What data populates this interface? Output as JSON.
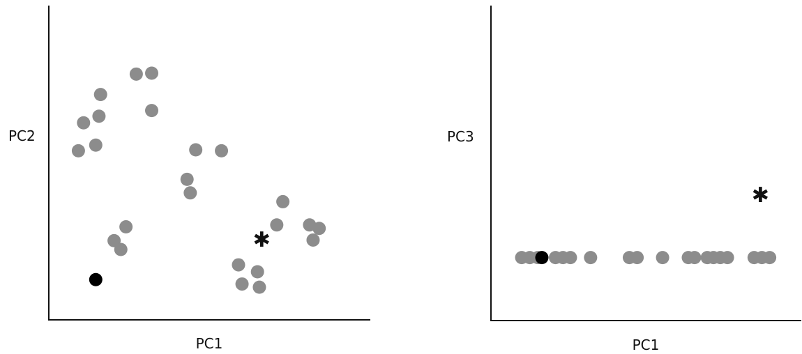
{
  "chart_data": [
    {
      "type": "scatter",
      "title": "",
      "xlabel": "PC1",
      "ylabel": "PC2",
      "grid": false,
      "ticks": false,
      "colors": {
        "points": "#8c8c8c",
        "highlight": "#000000",
        "star": "#111111",
        "axis": "#111111"
      },
      "series": [
        {
          "marker": "circle",
          "color": "#8c8c8c",
          "points": [
            [
              0.092,
              0.538
            ],
            [
              0.146,
              0.556
            ],
            [
              0.108,
              0.627
            ],
            [
              0.156,
              0.648
            ],
            [
              0.161,
              0.717
            ],
            [
              0.272,
              0.782
            ],
            [
              0.32,
              0.785
            ],
            [
              0.32,
              0.666
            ],
            [
              0.457,
              0.541
            ],
            [
              0.537,
              0.538
            ],
            [
              0.43,
              0.447
            ],
            [
              0.44,
              0.404
            ],
            [
              0.24,
              0.296
            ],
            [
              0.203,
              0.252
            ],
            [
              0.224,
              0.224
            ],
            [
              0.728,
              0.376
            ],
            [
              0.709,
              0.302
            ],
            [
              0.811,
              0.302
            ],
            [
              0.841,
              0.291
            ],
            [
              0.822,
              0.254
            ],
            [
              0.59,
              0.175
            ],
            [
              0.649,
              0.153
            ],
            [
              0.601,
              0.114
            ],
            [
              0.655,
              0.104
            ]
          ]
        },
        {
          "marker": "circle",
          "color": "#000000",
          "points": [
            [
              0.146,
              0.128
            ]
          ]
        },
        {
          "marker": "asterisk",
          "color": "#111111",
          "points": [
            [
              0.662,
              0.257
            ]
          ]
        }
      ]
    },
    {
      "type": "scatter",
      "title": "",
      "xlabel": "PC1",
      "ylabel": "PC3",
      "grid": false,
      "ticks": false,
      "colors": {
        "points": "#8c8c8c",
        "highlight": "#000000",
        "star": "#111111",
        "axis": "#111111"
      },
      "series": [
        {
          "marker": "circle",
          "color": "#8c8c8c",
          "points": [
            [
              0.099,
              0.2
            ],
            [
              0.125,
              0.2
            ],
            [
              0.151,
              0.2
            ],
            [
              0.208,
              0.2
            ],
            [
              0.232,
              0.2
            ],
            [
              0.256,
              0.2
            ],
            [
              0.321,
              0.2
            ],
            [
              0.446,
              0.2
            ],
            [
              0.471,
              0.2
            ],
            [
              0.553,
              0.2
            ],
            [
              0.636,
              0.2
            ],
            [
              0.656,
              0.2
            ],
            [
              0.697,
              0.2
            ],
            [
              0.717,
              0.2
            ],
            [
              0.739,
              0.2
            ],
            [
              0.762,
              0.2
            ],
            [
              0.848,
              0.2
            ],
            [
              0.873,
              0.2
            ],
            [
              0.898,
              0.2
            ]
          ]
        },
        {
          "marker": "circle",
          "color": "#000000",
          "points": [
            [
              0.164,
              0.2
            ]
          ]
        },
        {
          "marker": "asterisk",
          "color": "#111111",
          "points": [
            [
              0.868,
              0.4
            ]
          ]
        }
      ]
    }
  ]
}
